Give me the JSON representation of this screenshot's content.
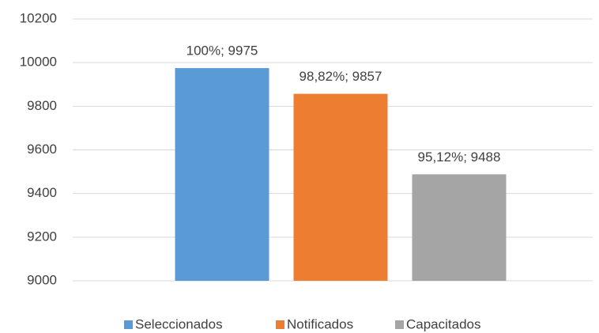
{
  "chart_data": {
    "type": "bar",
    "categories": [
      null
    ],
    "series": [
      {
        "name": "Seleccionados",
        "color": "#5b9bd5",
        "values": [
          9975
        ],
        "value_labels": [
          "100%; 9975"
        ]
      },
      {
        "name": "Notificados",
        "color": "#ed7d31",
        "values": [
          9857
        ],
        "value_labels": [
          "98,82%; 9857"
        ]
      },
      {
        "name": "Capacitados",
        "color": "#a5a5a5",
        "values": [
          9488
        ],
        "value_labels": [
          "95,12%; 9488"
        ]
      }
    ],
    "ylim": [
      9000,
      10200
    ],
    "yticks": [
      9000,
      9200,
      9400,
      9600,
      9800,
      10000,
      10200
    ],
    "grid": true,
    "legend": "bottom"
  }
}
